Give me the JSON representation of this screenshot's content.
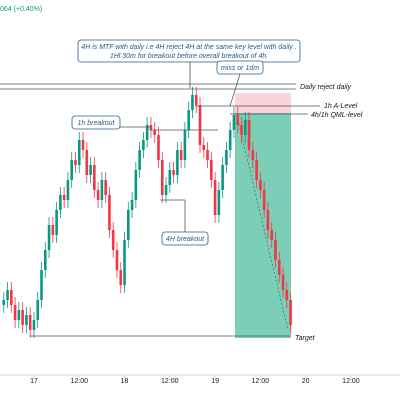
{
  "header": {
    "price_change": "064 (+0.40%)"
  },
  "chart_data": {
    "type": "candlestick",
    "x": [
      -8,
      -7,
      -6,
      -5,
      -4,
      -3,
      -2,
      -1,
      0,
      1,
      2,
      3,
      4,
      5,
      6,
      7,
      8,
      9,
      10,
      11,
      12,
      13,
      14,
      15,
      16,
      17,
      18,
      19,
      20,
      21,
      22,
      23,
      24,
      25,
      26,
      27,
      28,
      29,
      30,
      31,
      32,
      33,
      34,
      35,
      36,
      37,
      38,
      39,
      40,
      41,
      42,
      43,
      44,
      45,
      46,
      47,
      48,
      49,
      50,
      51,
      52,
      53,
      54,
      55,
      56,
      57,
      58,
      59,
      60,
      61,
      62,
      63,
      64,
      65,
      66,
      67,
      68
    ],
    "open": [
      95,
      100,
      110,
      95,
      80,
      90,
      75,
      85,
      70,
      80,
      100,
      130,
      150,
      175,
      165,
      190,
      205,
      200,
      220,
      240,
      235,
      260,
      250,
      225,
      235,
      210,
      200,
      220,
      205,
      170,
      150,
      130,
      115,
      160,
      190,
      200,
      230,
      250,
      260,
      275,
      270,
      265,
      240,
      205,
      215,
      230,
      225,
      250,
      240,
      270,
      290,
      305,
      295,
      255,
      250,
      240,
      220,
      185,
      210,
      235,
      250,
      270,
      285,
      275,
      265,
      280,
      250,
      240,
      220,
      210,
      190,
      170,
      160,
      140,
      125,
      110,
      100
    ],
    "high": [
      108,
      118,
      118,
      103,
      98,
      98,
      93,
      93,
      88,
      108,
      138,
      158,
      183,
      183,
      198,
      213,
      213,
      228,
      248,
      248,
      268,
      268,
      258,
      243,
      243,
      218,
      228,
      228,
      213,
      178,
      158,
      138,
      168,
      198,
      208,
      238,
      258,
      268,
      283,
      283,
      278,
      273,
      248,
      223,
      238,
      238,
      258,
      258,
      278,
      298,
      313,
      313,
      303,
      263,
      258,
      248,
      228,
      218,
      243,
      258,
      278,
      293,
      293,
      283,
      288,
      288,
      258,
      248,
      228,
      218,
      198,
      178,
      168,
      148,
      133,
      118,
      108
    ],
    "low": [
      87,
      92,
      87,
      72,
      72,
      67,
      67,
      62,
      62,
      72,
      92,
      122,
      142,
      157,
      157,
      182,
      192,
      192,
      212,
      227,
      227,
      242,
      217,
      217,
      202,
      192,
      192,
      197,
      162,
      142,
      122,
      107,
      107,
      152,
      182,
      192,
      222,
      242,
      252,
      262,
      257,
      232,
      197,
      197,
      207,
      217,
      217,
      232,
      232,
      262,
      282,
      287,
      247,
      242,
      232,
      212,
      177,
      177,
      202,
      227,
      242,
      262,
      267,
      257,
      257,
      242,
      232,
      212,
      202,
      182,
      162,
      152,
      132,
      117,
      102,
      92,
      67
    ],
    "close": [
      100,
      110,
      95,
      80,
      90,
      75,
      85,
      70,
      80,
      100,
      130,
      150,
      175,
      165,
      190,
      205,
      200,
      220,
      240,
      235,
      260,
      250,
      225,
      235,
      210,
      200,
      220,
      205,
      170,
      150,
      130,
      115,
      160,
      190,
      200,
      230,
      250,
      260,
      275,
      270,
      265,
      240,
      205,
      215,
      230,
      225,
      250,
      240,
      270,
      290,
      305,
      295,
      255,
      250,
      240,
      220,
      185,
      210,
      235,
      250,
      270,
      285,
      275,
      265,
      280,
      250,
      240,
      220,
      210,
      190,
      170,
      160,
      140,
      125,
      110,
      100,
      75
    ],
    "up_color": "#089981",
    "down_color": "#f23645",
    "xlim": [
      -9,
      97
    ],
    "ylim": [
      25,
      400
    ],
    "xticks": [
      {
        "value": 0,
        "label": "17"
      },
      {
        "value": 12,
        "label": "12:00"
      },
      {
        "value": 24,
        "label": "18"
      },
      {
        "value": 36,
        "label": "12:00"
      },
      {
        "value": 48,
        "label": "19"
      },
      {
        "value": 60,
        "label": "12:00"
      },
      {
        "value": 72,
        "label": "20"
      },
      {
        "value": 84,
        "label": "12:00"
      }
    ],
    "annotations": {
      "mtf_note": [
        "4H is MTF with daily i.e 4H reject 4H at the same key level with daily .",
        "1Hl 30m for breakout before overall breakout of 4h."
      ],
      "miss": "miss or 1dm",
      "daily_reject": "Daily reject daily",
      "a_level": "1h A-Level",
      "qml_level": "4h/1h QML-level",
      "breakout_1h": "1h breakout",
      "breakout_4h": "4H breakout",
      "target": "Target"
    }
  }
}
